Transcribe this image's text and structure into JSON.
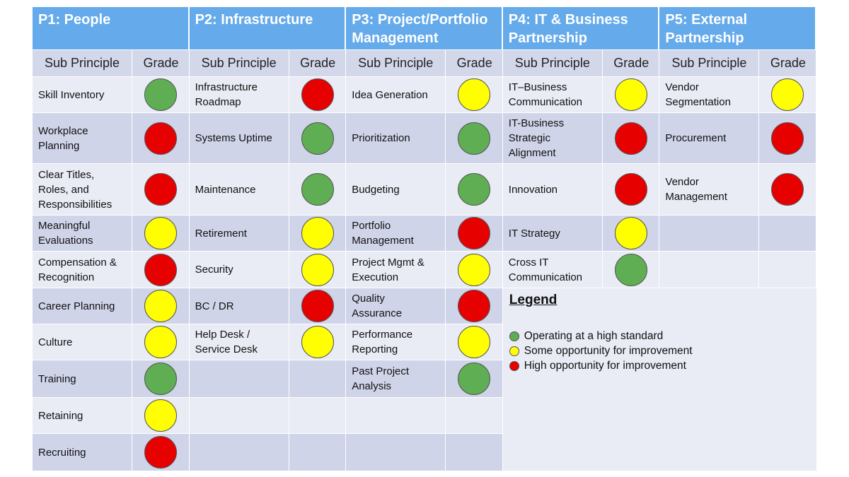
{
  "column_headers": {
    "sub_principle": "Sub Principle",
    "grade": "Grade"
  },
  "grade_colors": {
    "green": "#5fae54",
    "yellow": "#ffff00",
    "red": "#e60000"
  },
  "pillars": [
    {
      "title": "P1: People",
      "items": [
        {
          "name": "Skill Inventory",
          "grade": "green"
        },
        {
          "name": "Workplace\nPlanning",
          "grade": "red"
        },
        {
          "name": "Clear Titles,\nRoles, and\nResponsibilities",
          "grade": "red"
        },
        {
          "name": "Meaningful\nEvaluations",
          "grade": "yellow"
        },
        {
          "name": "Compensation &\nRecognition",
          "grade": "red"
        },
        {
          "name": "Career Planning",
          "grade": "yellow"
        },
        {
          "name": "Culture",
          "grade": "yellow"
        },
        {
          "name": "Training",
          "grade": "green"
        },
        {
          "name": "Retaining",
          "grade": "yellow"
        },
        {
          "name": "Recruiting",
          "grade": "red"
        }
      ]
    },
    {
      "title": "P2: Infrastructure",
      "items": [
        {
          "name": "Infrastructure\nRoadmap",
          "grade": "red"
        },
        {
          "name": "Systems Uptime",
          "grade": "green"
        },
        {
          "name": "Maintenance",
          "grade": "green"
        },
        {
          "name": "Retirement",
          "grade": "yellow"
        },
        {
          "name": "Security",
          "grade": "yellow"
        },
        {
          "name": "BC / DR",
          "grade": "red"
        },
        {
          "name": "Help Desk /\nService Desk",
          "grade": "yellow"
        },
        {
          "name": "",
          "grade": ""
        },
        {
          "name": "",
          "grade": ""
        },
        {
          "name": "",
          "grade": ""
        }
      ]
    },
    {
      "title": "P3: Project/Portfolio Management",
      "items": [
        {
          "name": "Idea Generation",
          "grade": "yellow"
        },
        {
          "name": "Prioritization",
          "grade": "green"
        },
        {
          "name": "Budgeting",
          "grade": "green"
        },
        {
          "name": "Portfolio\nManagement",
          "grade": "red"
        },
        {
          "name": "Project Mgmt &\nExecution",
          "grade": "yellow"
        },
        {
          "name": "Quality\nAssurance",
          "grade": "red"
        },
        {
          "name": "Performance\nReporting",
          "grade": "yellow"
        },
        {
          "name": "Past Project\nAnalysis",
          "grade": "green"
        },
        {
          "name": "",
          "grade": ""
        },
        {
          "name": "",
          "grade": ""
        }
      ]
    },
    {
      "title": "P4: IT & Business Partnership",
      "items": [
        {
          "name": "IT–Business\nCommunication",
          "grade": "yellow"
        },
        {
          "name": "IT-Business\nStrategic\nAlignment",
          "grade": "red"
        },
        {
          "name": "Innovation",
          "grade": "red"
        },
        {
          "name": "IT Strategy",
          "grade": "yellow"
        },
        {
          "name": "Cross IT\nCommunication",
          "grade": "green"
        }
      ]
    },
    {
      "title": "P5: External Partnership",
      "items": [
        {
          "name": "Vendor\nSegmentation",
          "grade": "yellow"
        },
        {
          "name": "Procurement",
          "grade": "red"
        },
        {
          "name": "Vendor\nManagement",
          "grade": "red"
        },
        {
          "name": "",
          "grade": ""
        },
        {
          "name": "",
          "grade": ""
        }
      ]
    }
  ],
  "legend": {
    "title": "Legend",
    "items": [
      {
        "color": "green",
        "label": "Operating at a high standard"
      },
      {
        "color": "yellow",
        "label": "Some opportunity for improvement"
      },
      {
        "color": "red",
        "label": "High opportunity for improvement"
      }
    ]
  }
}
